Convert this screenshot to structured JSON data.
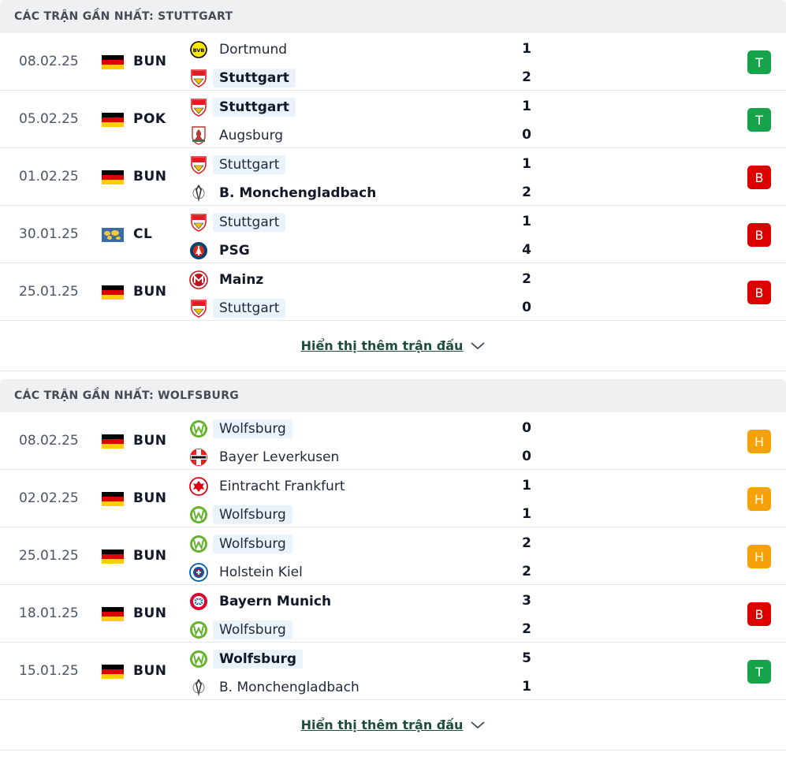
{
  "sections": [
    {
      "title": "CÁC TRẬN GẦN NHẤT: STUTTGART",
      "show_more": "Hiển thị thêm trận đấu",
      "matches": [
        {
          "date": "08.02.25",
          "league": "BUN",
          "flag": "germany-flag",
          "home": {
            "name": "Dortmund",
            "logo": "dortmund-logo"
          },
          "away": {
            "name": "Stuttgart",
            "logo": "stuttgart-logo"
          },
          "home_score": "1",
          "away_score": "2",
          "result": "T"
        },
        {
          "date": "05.02.25",
          "league": "POK",
          "flag": "germany-flag",
          "home": {
            "name": "Stuttgart",
            "logo": "stuttgart-logo"
          },
          "away": {
            "name": "Augsburg",
            "logo": "augsburg-logo"
          },
          "home_score": "1",
          "away_score": "0",
          "result": "T"
        },
        {
          "date": "01.02.25",
          "league": "BUN",
          "flag": "germany-flag",
          "home": {
            "name": "Stuttgart",
            "logo": "stuttgart-logo"
          },
          "away": {
            "name": "B. Monchengladbach",
            "logo": "gladbach-logo"
          },
          "home_score": "1",
          "away_score": "2",
          "result": "B"
        },
        {
          "date": "30.01.25",
          "league": "CL",
          "flag": "world-flag",
          "home": {
            "name": "Stuttgart",
            "logo": "stuttgart-logo"
          },
          "away": {
            "name": "PSG",
            "logo": "psg-logo"
          },
          "home_score": "1",
          "away_score": "4",
          "result": "B"
        },
        {
          "date": "25.01.25",
          "league": "BUN",
          "flag": "germany-flag",
          "home": {
            "name": "Mainz",
            "logo": "mainz-logo"
          },
          "away": {
            "name": "Stuttgart",
            "logo": "stuttgart-logo"
          },
          "home_score": "2",
          "away_score": "0",
          "result": "B"
        }
      ]
    },
    {
      "title": "CÁC TRẬN GẦN NHẤT: WOLFSBURG",
      "show_more": "Hiển thị thêm trận đấu",
      "matches": [
        {
          "date": "08.02.25",
          "league": "BUN",
          "flag": "germany-flag",
          "home": {
            "name": "Wolfsburg",
            "logo": "wolfsburg-logo"
          },
          "away": {
            "name": "Bayer Leverkusen",
            "logo": "leverkusen-logo"
          },
          "home_score": "0",
          "away_score": "0",
          "result": "H"
        },
        {
          "date": "02.02.25",
          "league": "BUN",
          "flag": "germany-flag",
          "home": {
            "name": "Eintracht Frankfurt",
            "logo": "frankfurt-logo"
          },
          "away": {
            "name": "Wolfsburg",
            "logo": "wolfsburg-logo"
          },
          "home_score": "1",
          "away_score": "1",
          "result": "H"
        },
        {
          "date": "25.01.25",
          "league": "BUN",
          "flag": "germany-flag",
          "home": {
            "name": "Wolfsburg",
            "logo": "wolfsburg-logo"
          },
          "away": {
            "name": "Holstein Kiel",
            "logo": "kiel-logo"
          },
          "home_score": "2",
          "away_score": "2",
          "result": "H"
        },
        {
          "date": "18.01.25",
          "league": "BUN",
          "flag": "germany-flag",
          "home": {
            "name": "Bayern Munich",
            "logo": "bayern-logo"
          },
          "away": {
            "name": "Wolfsburg",
            "logo": "wolfsburg-logo"
          },
          "home_score": "3",
          "away_score": "2",
          "result": "B"
        },
        {
          "date": "15.01.25",
          "league": "BUN",
          "flag": "germany-flag",
          "home": {
            "name": "Wolfsburg",
            "logo": "wolfsburg-logo"
          },
          "away": {
            "name": "B. Monchengladbach",
            "logo": "gladbach-logo"
          },
          "home_score": "5",
          "away_score": "1",
          "result": "T"
        }
      ]
    }
  ],
  "colors": {
    "win": "#16a34a",
    "loss": "#dc0000",
    "draw": "#f5a10a",
    "highlight": "#eaf3fb",
    "header_bg": "#eef0f2"
  }
}
